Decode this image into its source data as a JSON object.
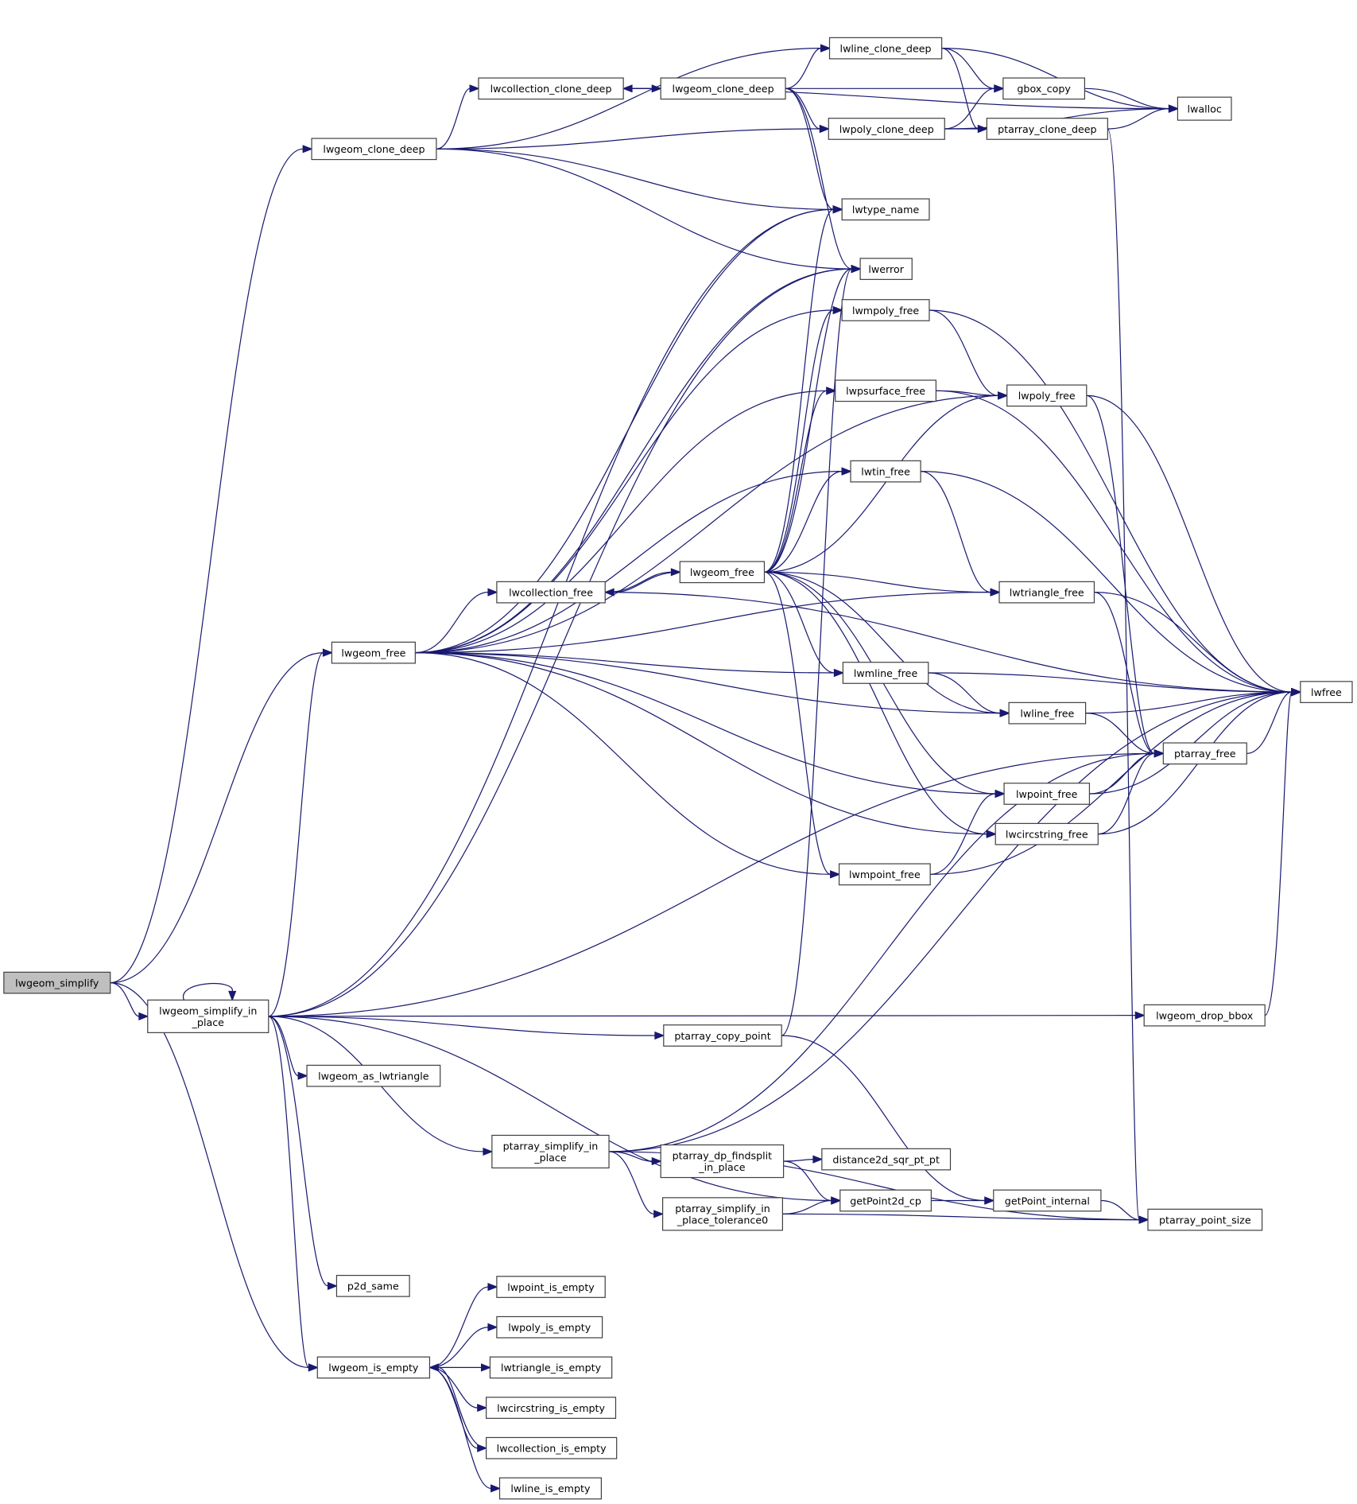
{
  "graph": {
    "edge_color": "#191970",
    "root_fill": "#bfbfbf",
    "nodes": [
      {
        "id": "simplify",
        "label": [
          "lwgeom_simplify"
        ],
        "root": true
      },
      {
        "id": "simplify_in_place",
        "label": [
          "lwgeom_simplify_in",
          "_place"
        ]
      },
      {
        "id": "clone_deep_a",
        "label": [
          "lwgeom_clone_deep"
        ]
      },
      {
        "id": "coll_clone_deep",
        "label": [
          "lwcollection_clone_deep"
        ]
      },
      {
        "id": "clone_deep_b",
        "label": [
          "lwgeom_clone_deep"
        ]
      },
      {
        "id": "line_clone_deep",
        "label": [
          "lwline_clone_deep"
        ]
      },
      {
        "id": "gbox_copy",
        "label": [
          "gbox_copy"
        ]
      },
      {
        "id": "lwalloc",
        "label": [
          "lwalloc"
        ]
      },
      {
        "id": "poly_clone_deep",
        "label": [
          "lwpoly_clone_deep"
        ]
      },
      {
        "id": "pa_clone_deep",
        "label": [
          "ptarray_clone_deep"
        ]
      },
      {
        "id": "lwtype_name",
        "label": [
          "lwtype_name"
        ]
      },
      {
        "id": "lwerror",
        "label": [
          "lwerror"
        ]
      },
      {
        "id": "mpoly_free",
        "label": [
          "lwmpoly_free"
        ]
      },
      {
        "id": "psurface_free",
        "label": [
          "lwpsurface_free"
        ]
      },
      {
        "id": "poly_free",
        "label": [
          "lwpoly_free"
        ]
      },
      {
        "id": "tin_free",
        "label": [
          "lwtin_free"
        ]
      },
      {
        "id": "geom_free_b",
        "label": [
          "lwgeom_free"
        ]
      },
      {
        "id": "coll_free",
        "label": [
          "lwcollection_free"
        ]
      },
      {
        "id": "triangle_free",
        "label": [
          "lwtriangle_free"
        ]
      },
      {
        "id": "geom_free_a",
        "label": [
          "lwgeom_free"
        ]
      },
      {
        "id": "mline_free",
        "label": [
          "lwmline_free"
        ]
      },
      {
        "id": "lwfree",
        "label": [
          "lwfree"
        ]
      },
      {
        "id": "line_free",
        "label": [
          "lwline_free"
        ]
      },
      {
        "id": "pa_free",
        "label": [
          "ptarray_free"
        ]
      },
      {
        "id": "point_free",
        "label": [
          "lwpoint_free"
        ]
      },
      {
        "id": "circ_free",
        "label": [
          "lwcircstring_free"
        ]
      },
      {
        "id": "mpoint_free",
        "label": [
          "lwmpoint_free"
        ]
      },
      {
        "id": "drop_bbox",
        "label": [
          "lwgeom_drop_bbox"
        ]
      },
      {
        "id": "pa_copy_point",
        "label": [
          "ptarray_copy_point"
        ]
      },
      {
        "id": "as_lwtriangle",
        "label": [
          "lwgeom_as_lwtriangle"
        ]
      },
      {
        "id": "pa_simplify",
        "label": [
          "ptarray_simplify_in",
          "_place"
        ]
      },
      {
        "id": "dp_findsplit",
        "label": [
          "ptarray_dp_findsplit",
          "_in_place"
        ]
      },
      {
        "id": "dist2d",
        "label": [
          "distance2d_sqr_pt_pt"
        ]
      },
      {
        "id": "pa_tol0",
        "label": [
          "ptarray_simplify_in",
          "_place_tolerance0"
        ]
      },
      {
        "id": "getpoint2d",
        "label": [
          "getPoint2d_cp"
        ]
      },
      {
        "id": "getpoint_int",
        "label": [
          "getPoint_internal"
        ]
      },
      {
        "id": "pa_point_size",
        "label": [
          "ptarray_point_size"
        ]
      },
      {
        "id": "p2d_same",
        "label": [
          "p2d_same"
        ]
      },
      {
        "id": "point_is_empty",
        "label": [
          "lwpoint_is_empty"
        ]
      },
      {
        "id": "poly_is_empty",
        "label": [
          "lwpoly_is_empty"
        ]
      },
      {
        "id": "geom_is_empty",
        "label": [
          "lwgeom_is_empty"
        ]
      },
      {
        "id": "triangle_is_empty",
        "label": [
          "lwtriangle_is_empty"
        ]
      },
      {
        "id": "circ_is_empty",
        "label": [
          "lwcircstring_is_empty"
        ]
      },
      {
        "id": "coll_is_empty",
        "label": [
          "lwcollection_is_empty"
        ]
      },
      {
        "id": "line_is_empty",
        "label": [
          "lwline_is_empty"
        ]
      }
    ],
    "edges": [
      [
        "simplify",
        "clone_deep_a"
      ],
      [
        "simplify",
        "geom_free_a"
      ],
      [
        "simplify",
        "simplify_in_place"
      ],
      [
        "simplify",
        "geom_is_empty"
      ],
      [
        "clone_deep_a",
        "line_clone_deep"
      ],
      [
        "clone_deep_a",
        "coll_clone_deep"
      ],
      [
        "clone_deep_a",
        "poly_clone_deep"
      ],
      [
        "clone_deep_a",
        "lwtype_name"
      ],
      [
        "clone_deep_a",
        "lwerror"
      ],
      [
        "coll_clone_deep",
        "clone_deep_b"
      ],
      [
        "coll_clone_deep",
        "lwalloc"
      ],
      [
        "coll_clone_deep",
        "gbox_copy"
      ],
      [
        "clone_deep_b",
        "coll_clone_deep"
      ],
      [
        "clone_deep_b",
        "line_clone_deep"
      ],
      [
        "clone_deep_b",
        "poly_clone_deep"
      ],
      [
        "clone_deep_b",
        "lwtype_name"
      ],
      [
        "clone_deep_b",
        "lwerror"
      ],
      [
        "line_clone_deep",
        "gbox_copy"
      ],
      [
        "line_clone_deep",
        "pa_clone_deep"
      ],
      [
        "line_clone_deep",
        "lwalloc"
      ],
      [
        "poly_clone_deep",
        "gbox_copy"
      ],
      [
        "poly_clone_deep",
        "pa_clone_deep"
      ],
      [
        "poly_clone_deep",
        "lwalloc"
      ],
      [
        "gbox_copy",
        "lwalloc"
      ],
      [
        "pa_clone_deep",
        "lwalloc"
      ],
      [
        "pa_clone_deep",
        "pa_point_size"
      ],
      [
        "geom_free_a",
        "lwtype_name"
      ],
      [
        "geom_free_a",
        "lwerror"
      ],
      [
        "geom_free_a",
        "mpoly_free"
      ],
      [
        "geom_free_a",
        "poly_free"
      ],
      [
        "geom_free_a",
        "psurface_free"
      ],
      [
        "geom_free_a",
        "tin_free"
      ],
      [
        "geom_free_a",
        "coll_free"
      ],
      [
        "geom_free_a",
        "triangle_free"
      ],
      [
        "geom_free_a",
        "mline_free"
      ],
      [
        "geom_free_a",
        "line_free"
      ],
      [
        "geom_free_a",
        "point_free"
      ],
      [
        "geom_free_a",
        "mpoint_free"
      ],
      [
        "geom_free_a",
        "circ_free"
      ],
      [
        "geom_free_b",
        "lwtype_name"
      ],
      [
        "geom_free_b",
        "lwerror"
      ],
      [
        "geom_free_b",
        "mpoly_free"
      ],
      [
        "geom_free_b",
        "poly_free"
      ],
      [
        "geom_free_b",
        "psurface_free"
      ],
      [
        "geom_free_b",
        "tin_free"
      ],
      [
        "geom_free_b",
        "coll_free"
      ],
      [
        "geom_free_b",
        "triangle_free"
      ],
      [
        "geom_free_b",
        "mline_free"
      ],
      [
        "geom_free_b",
        "line_free"
      ],
      [
        "geom_free_b",
        "point_free"
      ],
      [
        "geom_free_b",
        "mpoint_free"
      ],
      [
        "geom_free_b",
        "circ_free"
      ],
      [
        "coll_free",
        "geom_free_b"
      ],
      [
        "coll_free",
        "lwfree"
      ],
      [
        "mpoly_free",
        "poly_free"
      ],
      [
        "mpoly_free",
        "lwfree"
      ],
      [
        "psurface_free",
        "poly_free"
      ],
      [
        "psurface_free",
        "lwfree"
      ],
      [
        "poly_free",
        "pa_free"
      ],
      [
        "poly_free",
        "lwfree"
      ],
      [
        "tin_free",
        "triangle_free"
      ],
      [
        "tin_free",
        "lwfree"
      ],
      [
        "triangle_free",
        "pa_free"
      ],
      [
        "triangle_free",
        "lwfree"
      ],
      [
        "mline_free",
        "line_free"
      ],
      [
        "mline_free",
        "lwfree"
      ],
      [
        "line_free",
        "pa_free"
      ],
      [
        "line_free",
        "lwfree"
      ],
      [
        "point_free",
        "pa_free"
      ],
      [
        "point_free",
        "lwfree"
      ],
      [
        "circ_free",
        "pa_free"
      ],
      [
        "circ_free",
        "lwfree"
      ],
      [
        "mpoint_free",
        "point_free"
      ],
      [
        "mpoint_free",
        "lwfree"
      ],
      [
        "pa_free",
        "lwfree"
      ],
      [
        "drop_bbox",
        "lwfree"
      ],
      [
        "simplify_in_place",
        "simplify_in_place"
      ],
      [
        "simplify_in_place",
        "lwtype_name"
      ],
      [
        "simplify_in_place",
        "lwerror"
      ],
      [
        "simplify_in_place",
        "geom_free_a"
      ],
      [
        "simplify_in_place",
        "pa_free"
      ],
      [
        "simplify_in_place",
        "drop_bbox"
      ],
      [
        "simplify_in_place",
        "pa_copy_point"
      ],
      [
        "simplify_in_place",
        "as_lwtriangle"
      ],
      [
        "simplify_in_place",
        "pa_simplify"
      ],
      [
        "simplify_in_place",
        "getpoint2d"
      ],
      [
        "simplify_in_place",
        "p2d_same"
      ],
      [
        "simplify_in_place",
        "geom_is_empty"
      ],
      [
        "pa_copy_point",
        "lwerror"
      ],
      [
        "pa_copy_point",
        "getpoint_int"
      ],
      [
        "pa_simplify",
        "pa_free"
      ],
      [
        "pa_simplify",
        "lwfree"
      ],
      [
        "pa_simplify",
        "dp_findsplit"
      ],
      [
        "pa_simplify",
        "pa_tol0"
      ],
      [
        "pa_simplify",
        "pa_point_size"
      ],
      [
        "dp_findsplit",
        "dist2d"
      ],
      [
        "dp_findsplit",
        "getpoint2d"
      ],
      [
        "pa_tol0",
        "getpoint2d"
      ],
      [
        "pa_tol0",
        "pa_point_size"
      ],
      [
        "getpoint2d",
        "getpoint_int"
      ],
      [
        "getpoint_int",
        "pa_point_size"
      ],
      [
        "geom_is_empty",
        "point_is_empty"
      ],
      [
        "geom_is_empty",
        "poly_is_empty"
      ],
      [
        "geom_is_empty",
        "triangle_is_empty"
      ],
      [
        "geom_is_empty",
        "circ_is_empty"
      ],
      [
        "geom_is_empty",
        "coll_is_empty"
      ],
      [
        "geom_is_empty",
        "line_is_empty"
      ],
      [
        "coll_is_empty",
        "geom_is_empty"
      ]
    ]
  }
}
